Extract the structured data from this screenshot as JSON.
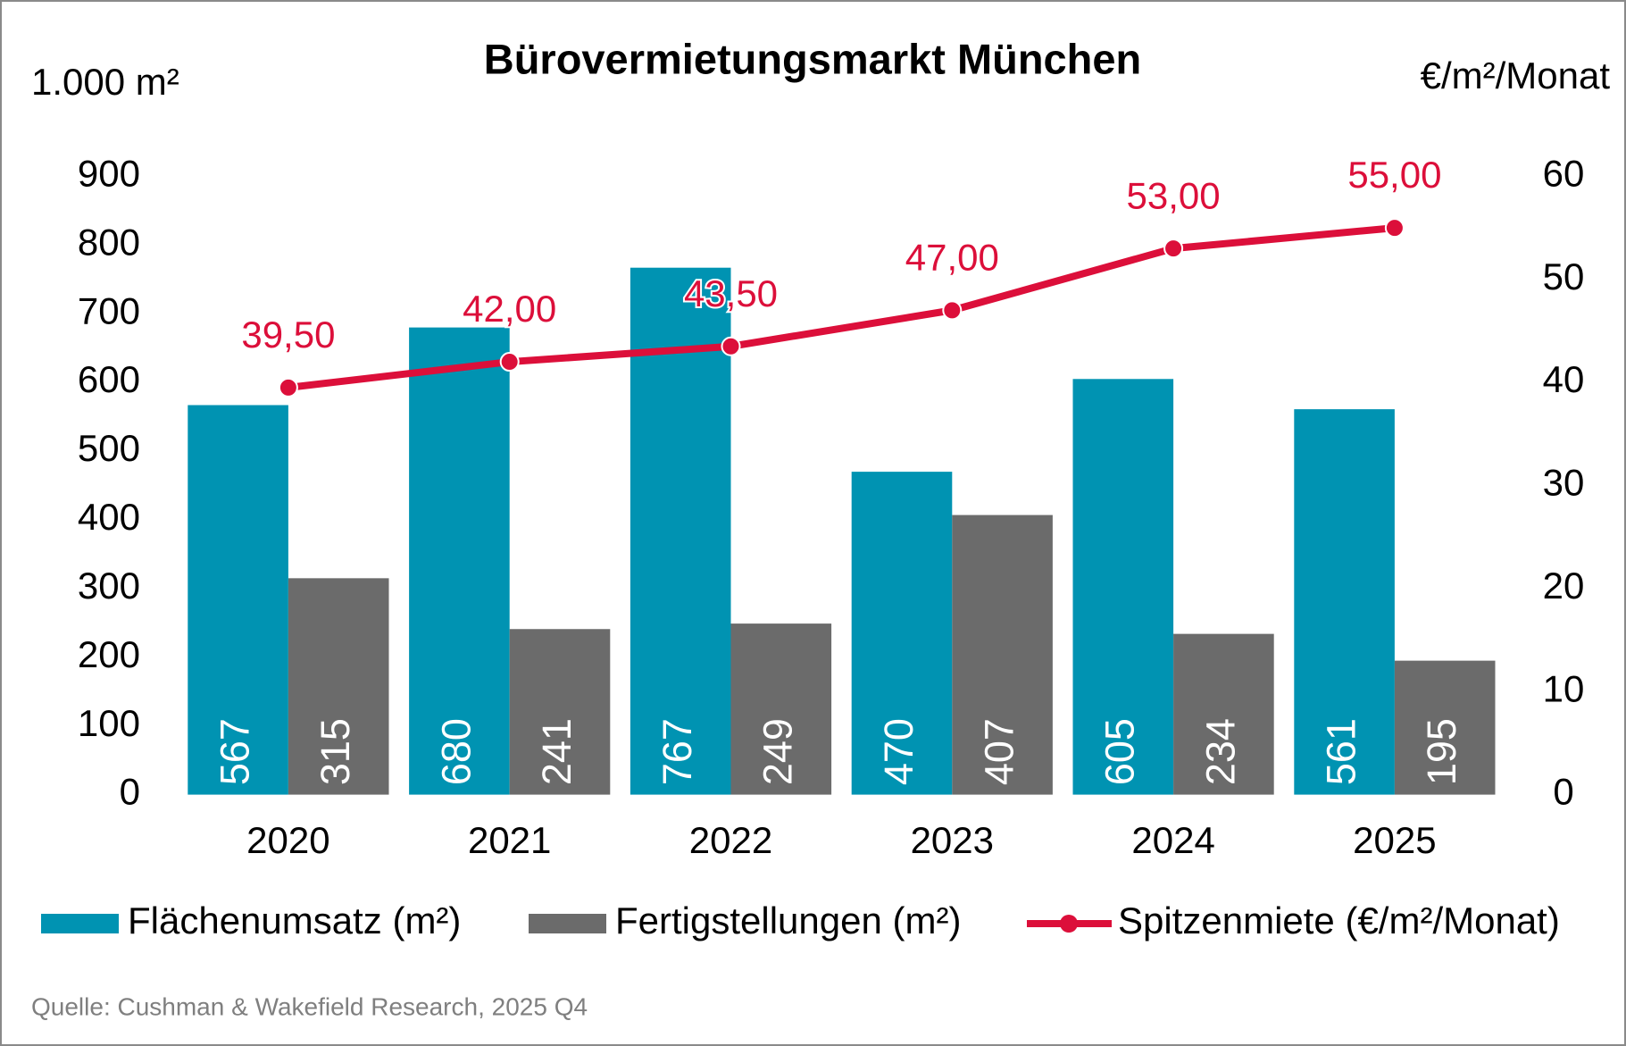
{
  "chart_data": {
    "type": "bar",
    "title": "Bürovermietungsmarkt München",
    "y_label": "1.000 m²",
    "y2_label": "€/m²/Monat",
    "source": "Quelle: Cushman & Wakefield Research, 2025 Q4",
    "categories": [
      "2020",
      "2021",
      "2022",
      "2023",
      "2024",
      "2025"
    ],
    "series": [
      {
        "name": "Flächenumsatz (m²)",
        "color": "#0093b2",
        "values": [
          567,
          680,
          767,
          470,
          605,
          561
        ]
      },
      {
        "name": "Fertigstellungen (m²)",
        "color": "#6b6b6b",
        "values": [
          315,
          241,
          249,
          407,
          234,
          195
        ]
      },
      {
        "name": "Spitzenmiete (€/m²/Monat)",
        "color": "#dc0f3a",
        "type": "line",
        "axis": "y2",
        "values": [
          39.5,
          42,
          43.5,
          47,
          53,
          55
        ],
        "value_labels": [
          "39,50",
          "42,00",
          "43,50",
          "47,00",
          "53,00",
          "55,00"
        ]
      }
    ],
    "ylim": [
      0,
      900
    ],
    "yticks": [
      0,
      100,
      200,
      300,
      400,
      500,
      600,
      700,
      800,
      900
    ],
    "y2lim": [
      0,
      60
    ],
    "y2ticks": [
      0,
      10,
      20,
      30,
      40,
      50,
      60
    ]
  }
}
